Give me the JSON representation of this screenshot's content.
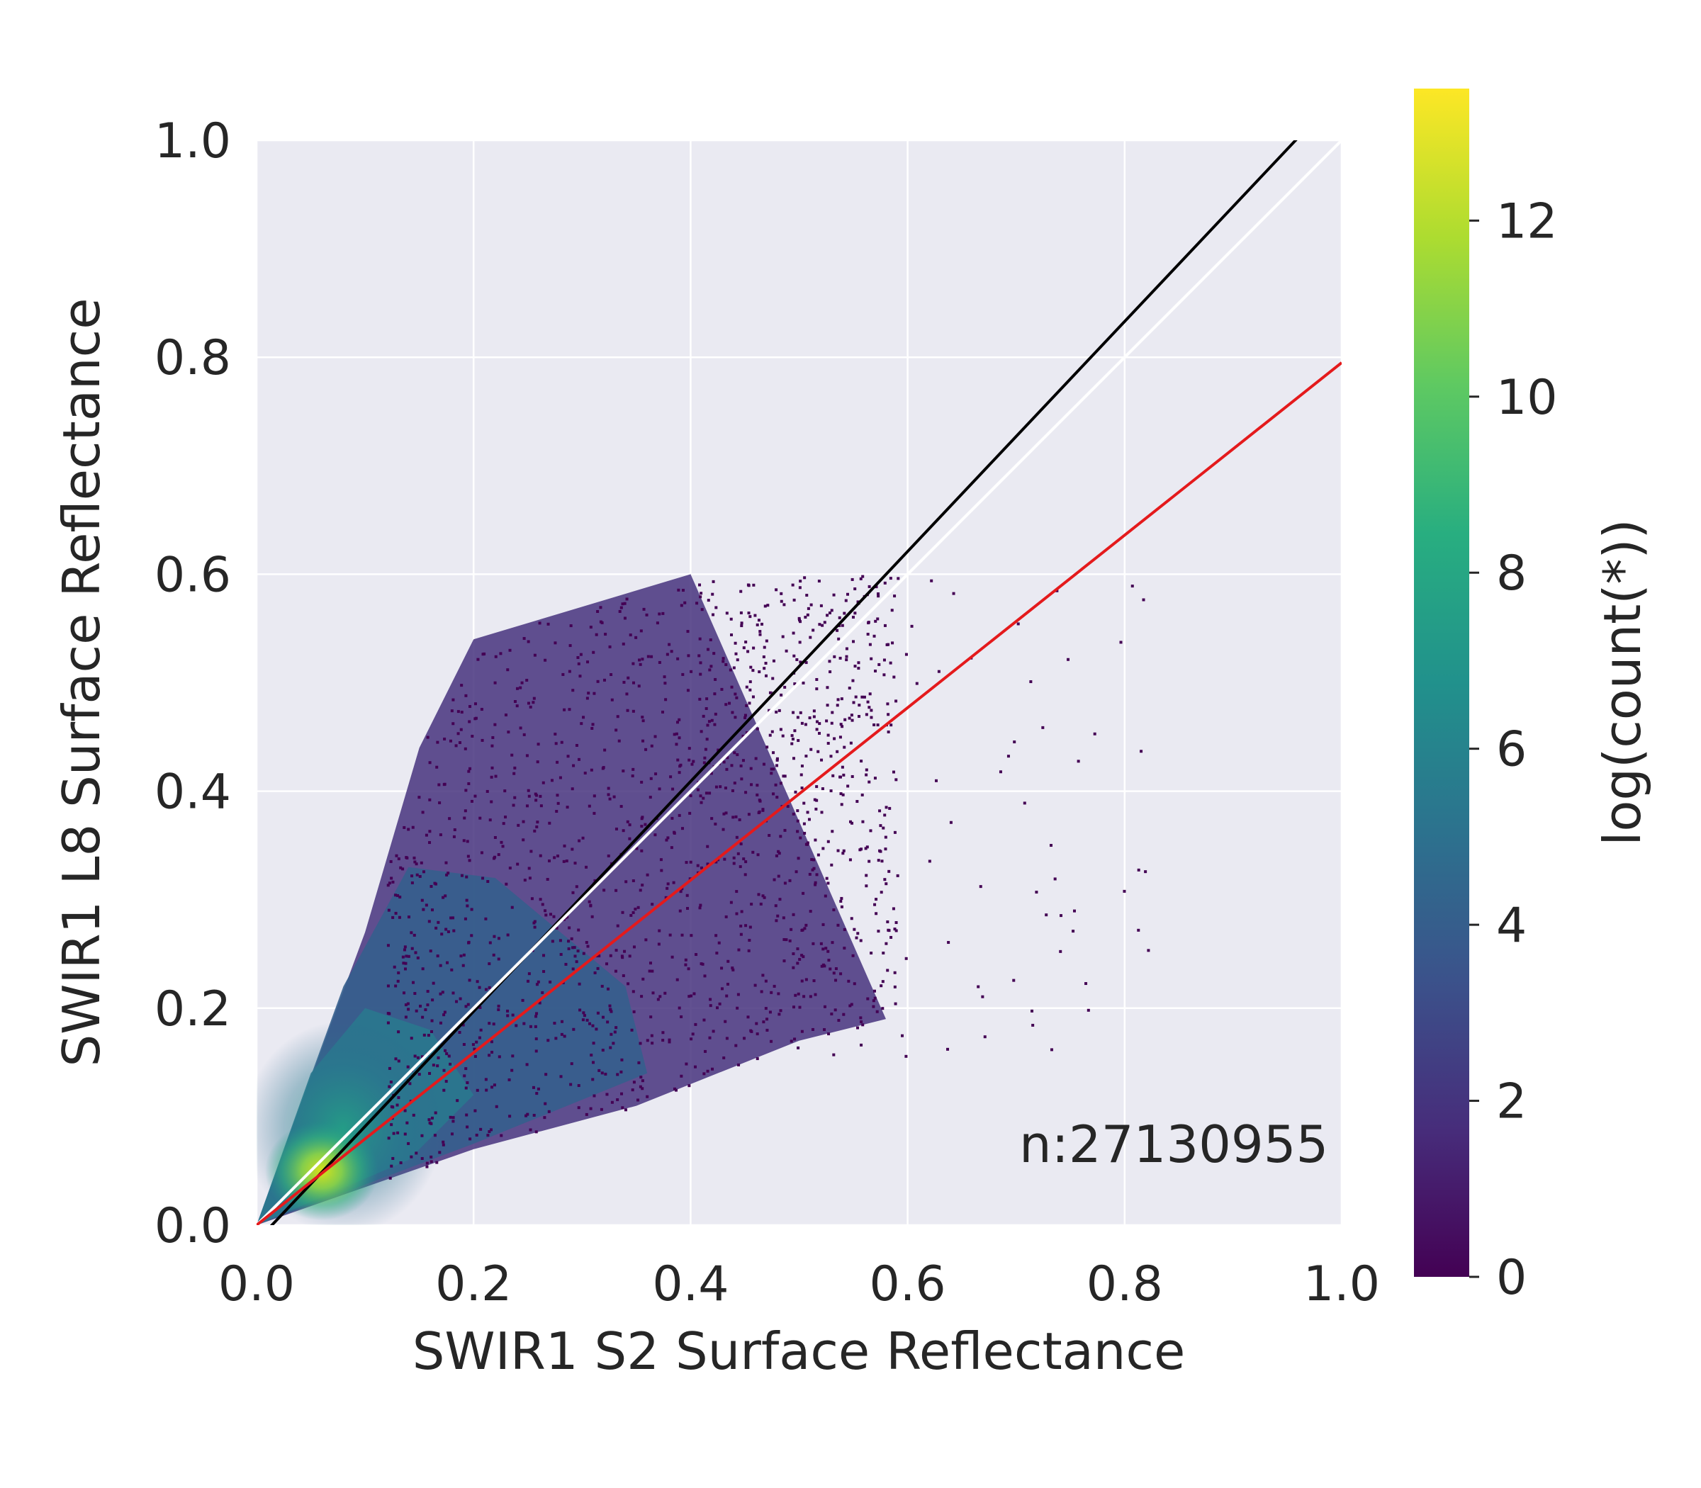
{
  "chart_data": {
    "type": "heatmap",
    "xlabel": "SWIR1 S2 Surface Reflectance",
    "ylabel": "SWIR1 L8 Surface Reflectance",
    "xlim": [
      0.0,
      1.0
    ],
    "ylim": [
      0.0,
      1.0
    ],
    "x_ticks": [
      "0.0",
      "0.2",
      "0.4",
      "0.6",
      "0.8",
      "1.0"
    ],
    "y_ticks": [
      "0.0",
      "0.2",
      "0.4",
      "0.6",
      "0.8",
      "1.0"
    ],
    "grid": true,
    "colormap": "viridis",
    "colorbar": {
      "label": "log(count(*))",
      "range": [
        0,
        13.5
      ],
      "ticks": [
        "0",
        "2",
        "4",
        "6",
        "8",
        "10",
        "12"
      ]
    },
    "annotation": "n:27130955",
    "lines": [
      {
        "role": "fit",
        "color": "#000000",
        "points": [
          [
            0.0,
            -0.015
          ],
          [
            1.0,
            1.045
          ]
        ]
      },
      {
        "role": "one-to-one",
        "color": "#ffffff",
        "points": [
          [
            0.0,
            0.0
          ],
          [
            1.0,
            1.0
          ]
        ]
      },
      {
        "role": "fit",
        "color": "#e41a1c",
        "points": [
          [
            0.0,
            0.0
          ],
          [
            1.0,
            0.795
          ]
        ]
      }
    ],
    "density_shape": {
      "apex": [
        0.0,
        0.0
      ],
      "upper_edge": [
        [
          0.0,
          0.0
        ],
        [
          0.1,
          0.27
        ],
        [
          0.15,
          0.44
        ],
        [
          0.2,
          0.54
        ],
        [
          0.4,
          0.6
        ]
      ],
      "lower_edge": [
        [
          0.0,
          0.0
        ],
        [
          0.2,
          0.07
        ],
        [
          0.35,
          0.11
        ],
        [
          0.5,
          0.17
        ],
        [
          0.58,
          0.19
        ]
      ],
      "peak": [
        0.06,
        0.05
      ],
      "peak_log_count": 13.0
    }
  }
}
